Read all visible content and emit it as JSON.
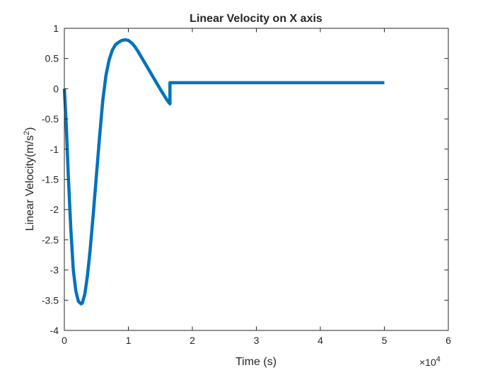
{
  "chart_data": {
    "type": "line",
    "title": "Linear Velocity on X axis",
    "xlabel": "Time (s)",
    "ylabel": "Linear Velocity(m/s",
    "ylabel_sup": "2",
    "ylabel_close": ")",
    "xlim": [
      0,
      60000
    ],
    "ylim": [
      -4,
      1
    ],
    "xticks": [
      0,
      10000,
      20000,
      30000,
      40000,
      50000,
      60000
    ],
    "xtick_labels": [
      "0",
      "1",
      "2",
      "3",
      "4",
      "5",
      "6"
    ],
    "x_exponent_base": "×10",
    "x_exponent_power": "4",
    "yticks": [
      1,
      0.5,
      0,
      -0.5,
      -1,
      -1.5,
      -2,
      -2.5,
      -3,
      -3.5,
      -4
    ],
    "ytick_labels": [
      "1",
      "0.5",
      "0",
      "-0.5",
      "-1",
      "-1.5",
      "-2",
      "-2.5",
      "-3",
      "-3.5",
      "-4"
    ],
    "grid": false,
    "legend": "none",
    "series": [
      {
        "color": "#0072BD",
        "x": [
          0,
          300,
          600,
          1000,
          1400,
          1800,
          2200,
          2600,
          2800,
          3200,
          3600,
          4000,
          4500,
          5000,
          5500,
          6000,
          6500,
          7000,
          7500,
          8000,
          8500,
          9000,
          9500,
          10000,
          10500,
          11000,
          11500,
          12000,
          13000,
          14000,
          15000,
          16000,
          16500,
          16500,
          17000,
          20000,
          25000,
          30000,
          35000,
          40000,
          45000,
          50000
        ],
        "y": [
          0,
          -0.6,
          -1.4,
          -2.3,
          -3.0,
          -3.35,
          -3.52,
          -3.56,
          -3.55,
          -3.4,
          -3.1,
          -2.7,
          -2.1,
          -1.45,
          -0.8,
          -0.2,
          0.22,
          0.48,
          0.64,
          0.73,
          0.77,
          0.8,
          0.81,
          0.8,
          0.76,
          0.7,
          0.62,
          0.53,
          0.35,
          0.17,
          -0.01,
          -0.18,
          -0.25,
          0.1,
          0.1,
          0.1,
          0.1,
          0.1,
          0.1,
          0.1,
          0.1,
          0.1
        ]
      }
    ]
  }
}
